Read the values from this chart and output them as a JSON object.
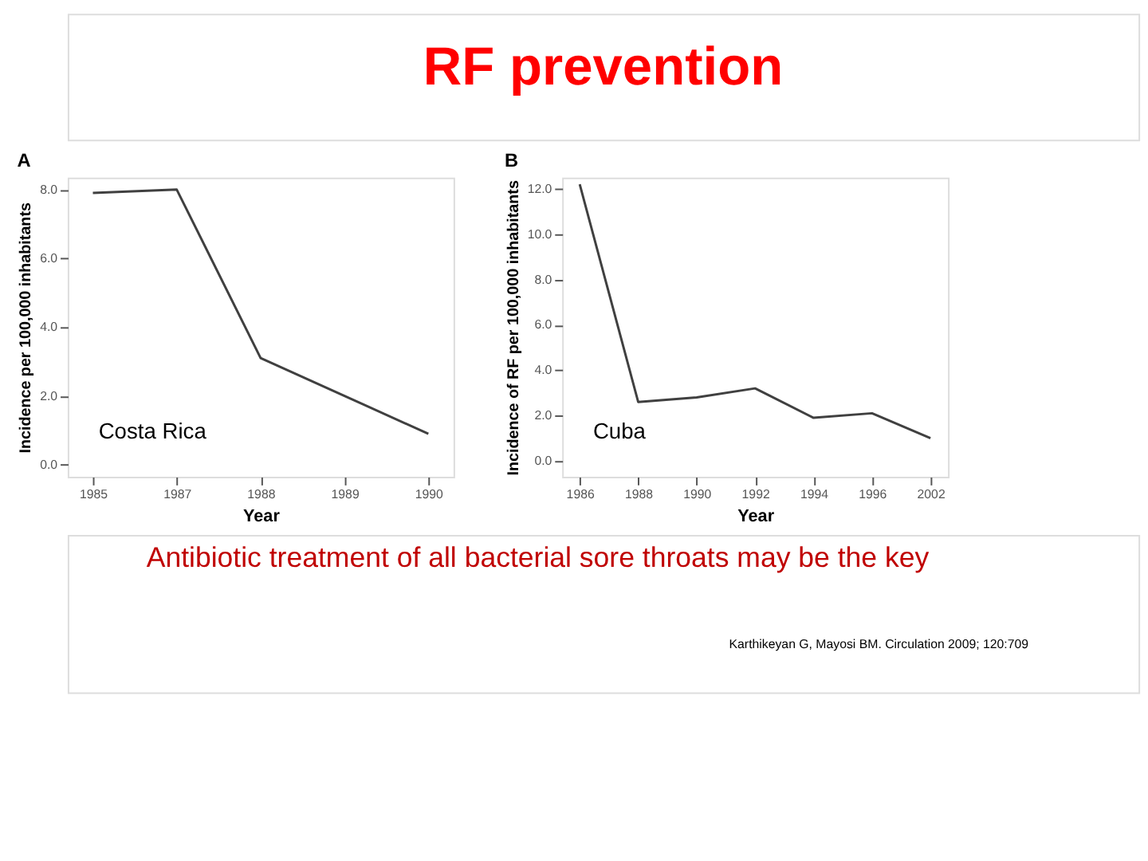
{
  "chart_data": [
    {
      "type": "other",
      "title": "RF prevention",
      "annotations": [
        "Antibiotic treatment of all bacterial sore throats may be the key",
        "Karthikeyan G, Mayosi BM. Circulation 2009; 120:709"
      ]
    },
    {
      "type": "line",
      "title": "A",
      "xlabel": "Year",
      "ylabel": "Incidence per 100,000 inhabitants",
      "categories": [
        "1985",
        "1987",
        "1988",
        "1989",
        "1990"
      ],
      "series": [
        {
          "color": "#404040",
          "values": [
            7.9,
            8.0,
            3.1,
            2.0,
            0.9
          ]
        }
      ],
      "ylim": [
        -0.35,
        8.35
      ],
      "yticks": [
        {
          "value": 0,
          "label": "0.0"
        },
        {
          "value": 2,
          "label": "2.0"
        },
        {
          "value": 4,
          "label": "4.0"
        },
        {
          "value": 6,
          "label": "6.0"
        },
        {
          "value": 8,
          "label": "8.0"
        }
      ],
      "grid": false,
      "annotations": [
        "Costa Rica"
      ]
    },
    {
      "type": "line",
      "title": "B",
      "xlabel": "Year",
      "ylabel": "Incidence of RF per 100,000 inhabitants",
      "categories": [
        "1986",
        "1988",
        "1990",
        "1992",
        "1994",
        "1996",
        "2002"
      ],
      "series": [
        {
          "color": "#404040",
          "values": [
            12.2,
            2.6,
            2.8,
            3.2,
            1.9,
            2.1,
            1.0
          ]
        }
      ],
      "ylim": [
        -0.7,
        12.5
      ],
      "yticks": [
        {
          "value": 0,
          "label": "0.0"
        },
        {
          "value": 2,
          "label": "2.0"
        },
        {
          "value": 4,
          "label": "4.0"
        },
        {
          "value": 6,
          "label": "6.0"
        },
        {
          "value": 8,
          "label": "8.0"
        },
        {
          "value": 10,
          "label": "10.0"
        },
        {
          "value": 12,
          "label": "12.0"
        }
      ],
      "grid": false,
      "annotations": [
        "Cuba"
      ]
    }
  ]
}
